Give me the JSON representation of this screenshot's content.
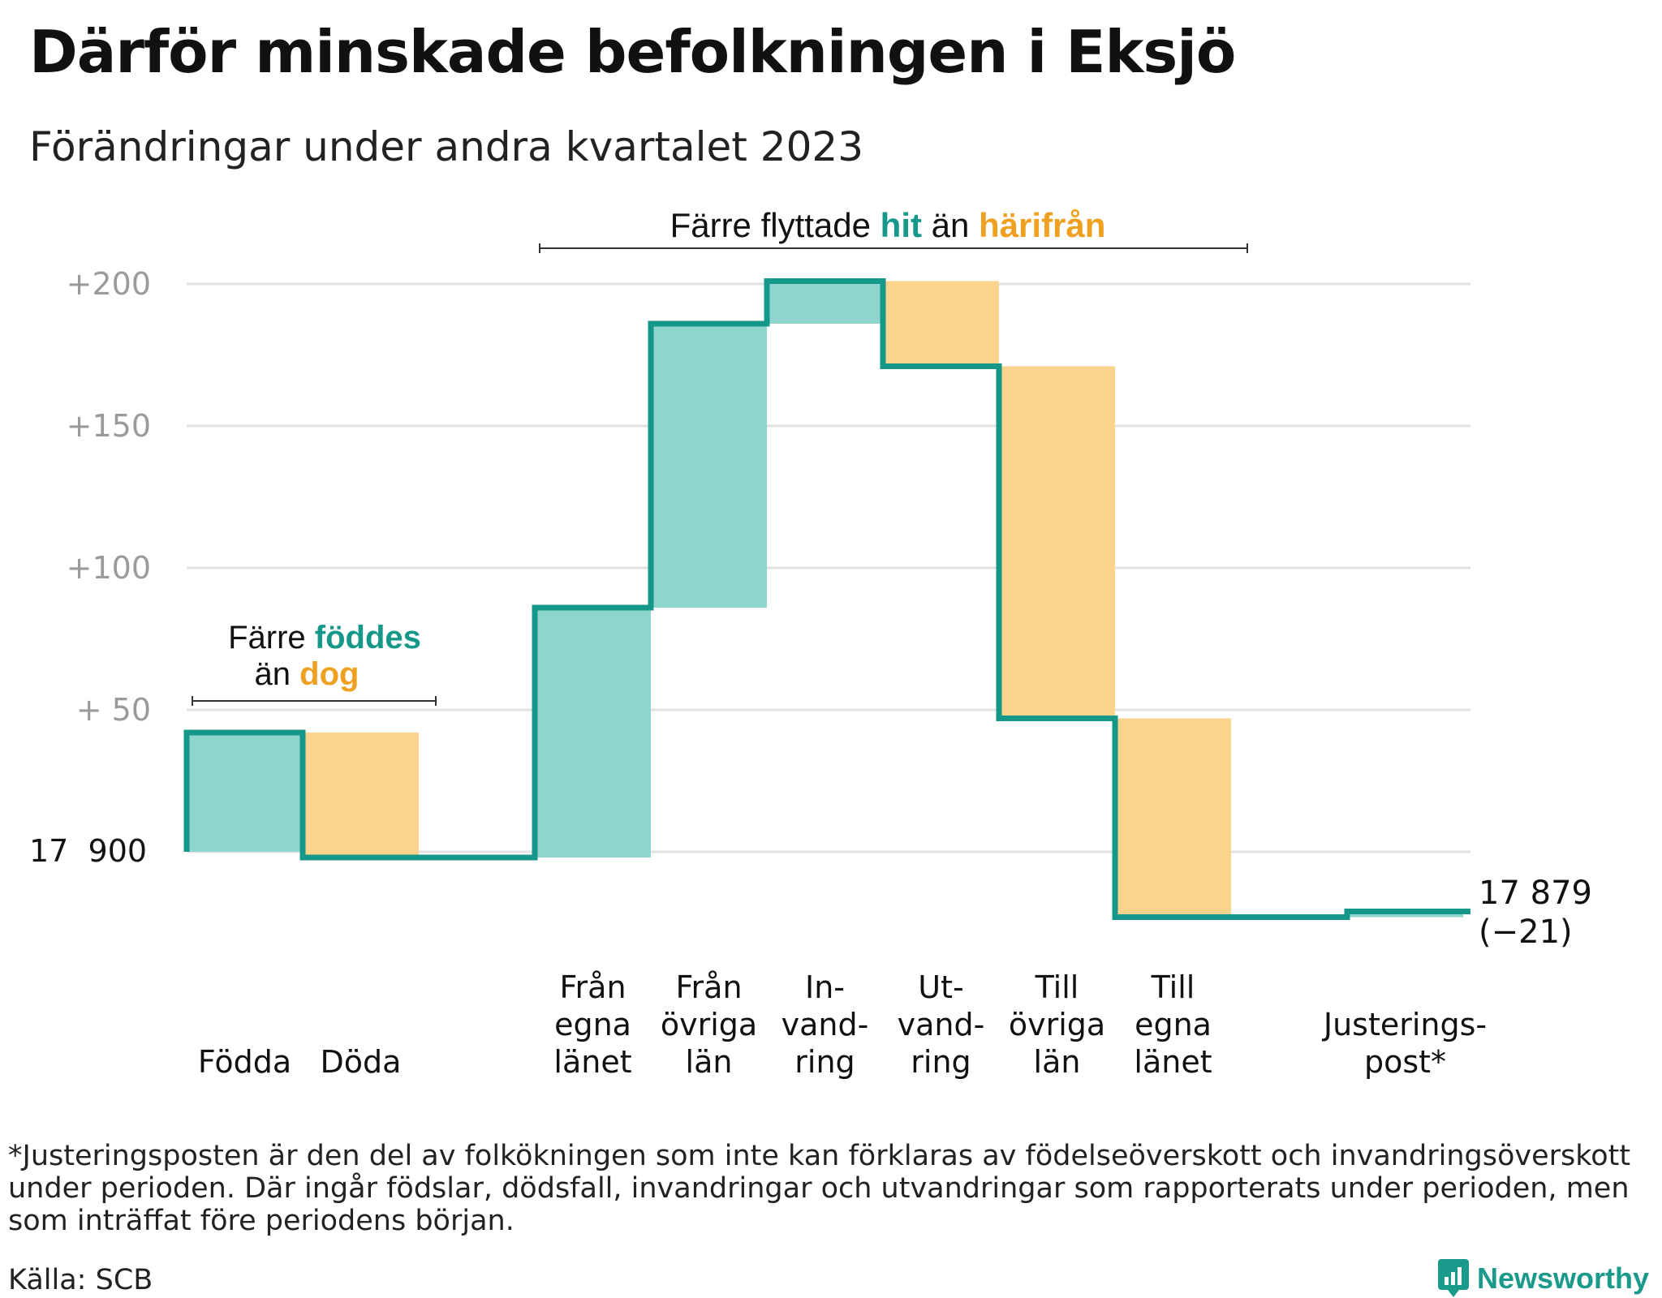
{
  "header": {
    "title": "Därför minskade befolkningen i Eksjö",
    "subtitle": "Förändringar under andra kvartalet 2023"
  },
  "annotations": {
    "births_deaths": {
      "line1_pre": "Färre ",
      "line1_highlight": "föddes",
      "line2_pre": "än ",
      "line2_highlight": "dog"
    },
    "migration": {
      "pre": "Färre flyttade ",
      "highlight1": "hit",
      "mid": " än ",
      "highlight2": "härifrån"
    },
    "end_value": "17 879",
    "end_change": "(−21)"
  },
  "footer": {
    "footnote": "*Justeringsposten är den del av folkökningen som inte kan förklaras av födelseöverskott och invandringsöverskott under perioden. Där ingår födslar, dödsfall, invandringar och utvandringar som rapporterats under perioden, men som inträffat före periodens början.",
    "source": "Källa: SCB",
    "brand": "Newsworthy"
  },
  "colors": {
    "increase_fill": "#8dd5cd",
    "decrease_fill": "#fad48d",
    "step_line": "#15978a",
    "highlight_teal": "#15978a",
    "highlight_orange": "#f0a020",
    "grid": "#e2e2e2",
    "tick_label": "#9a9a9a"
  },
  "chart_data": {
    "type": "waterfall",
    "title": "Därför minskade befolkningen i Eksjö",
    "subtitle": "Förändringar under andra kvartalet 2023",
    "start_value": 17900,
    "start_label": "17  900",
    "end_value": 17879,
    "net_change": -21,
    "ylim": [
      -30,
      200
    ],
    "y_ticks": [
      {
        "value": 200,
        "label": "+200"
      },
      {
        "value": 150,
        "label": "+150"
      },
      {
        "value": 100,
        "label": "+100"
      },
      {
        "value": 50,
        "label": "+  50"
      }
    ],
    "grid": true,
    "steps": [
      {
        "label": [
          "Födda"
        ],
        "value": 42,
        "direction": "increase"
      },
      {
        "label": [
          "Döda"
        ],
        "value": -44,
        "direction": "decrease"
      },
      {
        "label": [],
        "value": 0,
        "direction": "none"
      },
      {
        "label": [
          "Från",
          "egna",
          "länet"
        ],
        "value": 88,
        "direction": "increase"
      },
      {
        "label": [
          "Från",
          "övriga",
          "län"
        ],
        "value": 100,
        "direction": "increase"
      },
      {
        "label": [
          "In-",
          "vand-",
          "ring"
        ],
        "value": 15,
        "direction": "increase"
      },
      {
        "label": [
          "Ut-",
          "vand-",
          "ring"
        ],
        "value": -30,
        "direction": "decrease"
      },
      {
        "label": [
          "Till",
          "övriga",
          "län"
        ],
        "value": -124,
        "direction": "decrease"
      },
      {
        "label": [
          "Till",
          "egna",
          "länet"
        ],
        "value": -70,
        "direction": "decrease"
      },
      {
        "label": [],
        "value": 0,
        "direction": "none"
      },
      {
        "label": [
          "Justerings-",
          "post*"
        ],
        "value": 2,
        "direction": "increase"
      }
    ]
  }
}
